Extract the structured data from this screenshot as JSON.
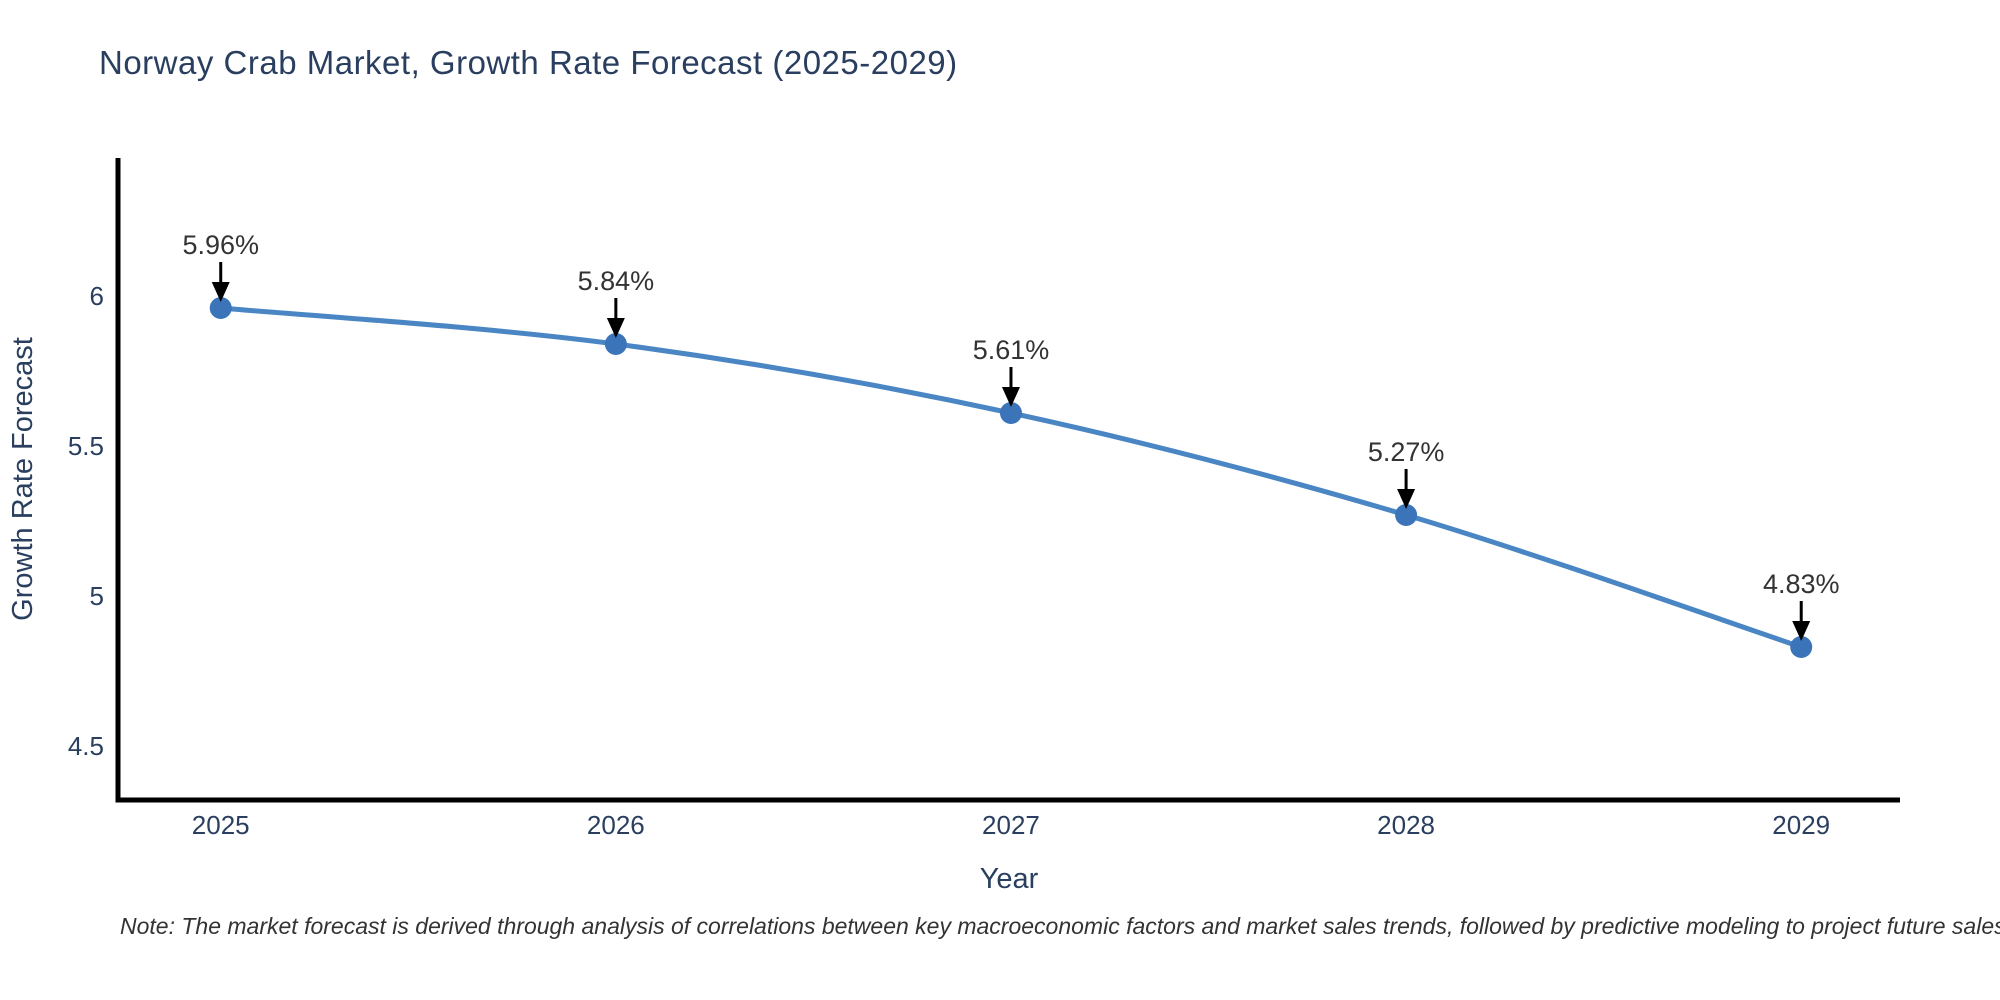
{
  "title": "Norway Crab Market, Growth Rate Forecast (2025-2029)",
  "note": "Note: The market forecast is derived through analysis of correlations between key macroeconomic factors and market sales trends, followed by predictive modeling to project future sales",
  "colors": {
    "title_text": "#2a3f5f",
    "tick_text": "#2a3f5f",
    "axis_title_text": "#2a3f5f",
    "annotation_text": "#333333",
    "axis_line": "#000000",
    "series_line": "#4a86c4",
    "marker_fill": "#3b74b9",
    "arrow": "#000000",
    "background": "#ffffff"
  },
  "chart_data": {
    "type": "line",
    "title": "Norway Crab Market, Growth Rate Forecast (2025-2029)",
    "xlabel": "Year",
    "ylabel": "Growth Rate Forecast",
    "x": [
      2025,
      2026,
      2027,
      2028,
      2029
    ],
    "series": [
      {
        "name": "Growth Rate Forecast",
        "values": [
          5.96,
          5.84,
          5.61,
          5.27,
          4.83
        ]
      }
    ],
    "point_labels": [
      "5.96%",
      "5.84%",
      "5.61%",
      "5.27%",
      "4.83%"
    ],
    "xticks": [
      2025,
      2026,
      2027,
      2028,
      2029
    ],
    "xtick_labels": [
      "2025",
      "2026",
      "2027",
      "2028",
      "2029"
    ],
    "yticks": [
      4.5,
      5,
      5.5,
      6
    ],
    "ytick_labels": [
      "4.5",
      "5",
      "5.5",
      "6"
    ],
    "xlim": [
      2024.74,
      2029.25
    ],
    "ylim": [
      4.32,
      6.46
    ],
    "grid": false,
    "legend_position": "none",
    "line_shape": "spline",
    "annotations_have_arrows": true
  }
}
